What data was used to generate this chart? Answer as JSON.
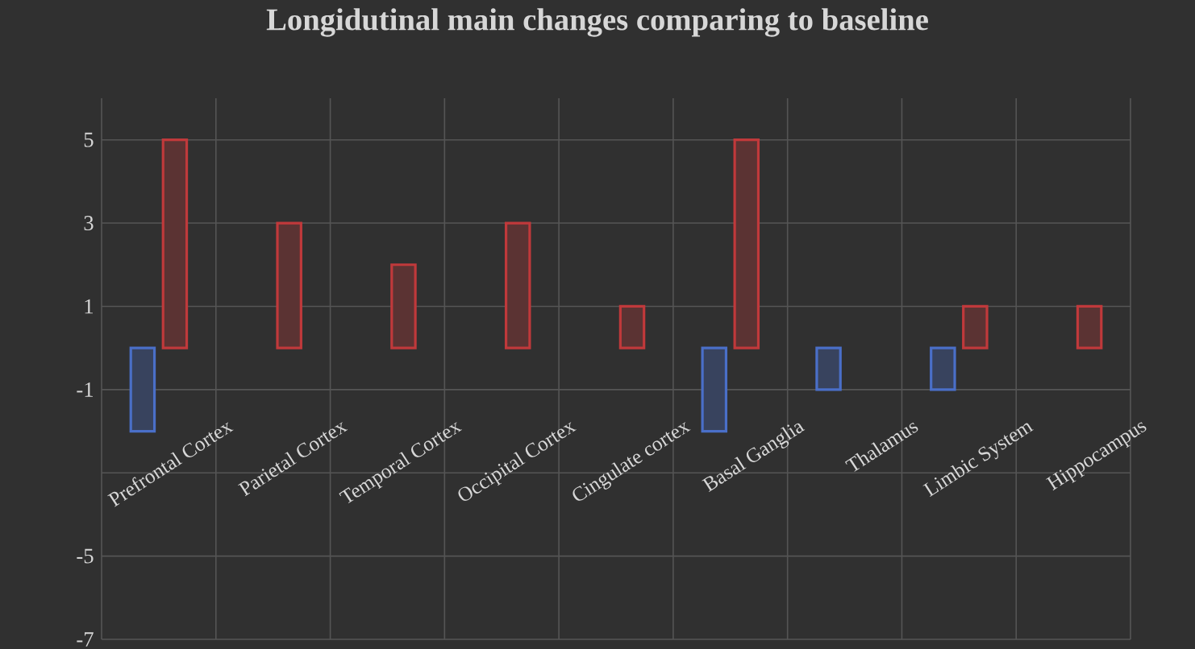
{
  "chart_data": {
    "type": "bar",
    "title": "Longidutinal main changes comparing to baseline",
    "categories": [
      "Prefrontal Cortex",
      "Parietal Cortex",
      "Temporal Cortex",
      "Occipital Cortex",
      "Cingulate cortex",
      "Basal Ganglia",
      "Thalamus",
      "Limbic System",
      "Hippocampus"
    ],
    "series": [
      {
        "color": "#4a6fc8",
        "values": [
          -2,
          null,
          null,
          null,
          null,
          -2,
          -1,
          -1,
          null
        ]
      },
      {
        "color": "#c0393b",
        "values": [
          5,
          3,
          2,
          3,
          1,
          5,
          null,
          1,
          1
        ]
      }
    ],
    "ylim": [
      -7,
      6
    ],
    "yticks": [
      5,
      3,
      1,
      -1,
      {
        "value": -3,
        "label": null
      },
      -5,
      -7
    ],
    "grid": true
  }
}
